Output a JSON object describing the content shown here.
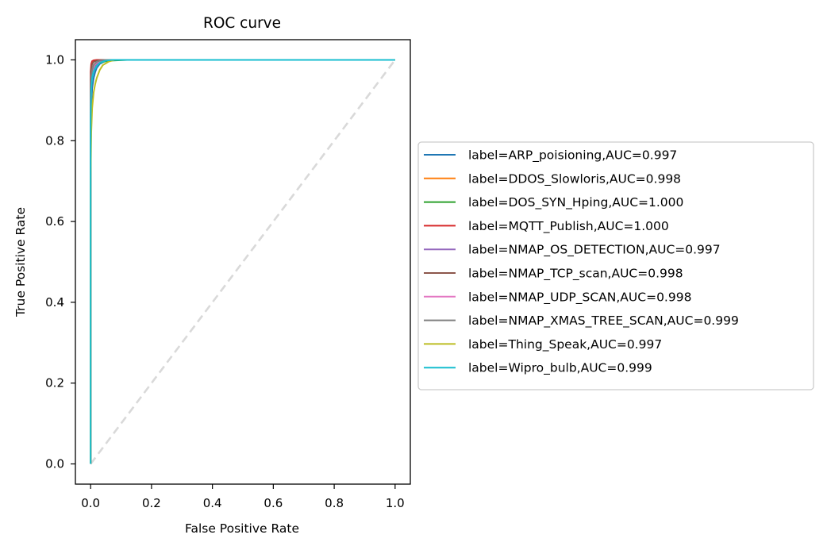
{
  "chart_data": {
    "type": "line",
    "title": "ROC curve",
    "xlabel": "False Positive Rate",
    "ylabel": "True Positive Rate",
    "xlim": [
      -0.05,
      1.05
    ],
    "ylim": [
      -0.05,
      1.05
    ],
    "xticks": [
      0.0,
      0.2,
      0.4,
      0.6,
      0.8,
      1.0
    ],
    "xtick_labels": [
      "0.0",
      "0.2",
      "0.4",
      "0.6",
      "0.8",
      "1.0"
    ],
    "yticks": [
      0.0,
      0.2,
      0.4,
      0.6,
      0.8,
      1.0
    ],
    "ytick_labels": [
      "0.0",
      "0.2",
      "0.4",
      "0.6",
      "0.8",
      "1.0"
    ],
    "grid": false,
    "legend_position": "right, outside plot area",
    "baseline": {
      "x": [
        0,
        1
      ],
      "y": [
        0,
        1
      ],
      "color": "#d9d9d9",
      "style": "dashed"
    },
    "series": [
      {
        "name": "label=ARP_poisioning,AUC=0.997",
        "color": "#1f77b4",
        "x": [
          0,
          0,
          0.002,
          0.005,
          0.01,
          0.015,
          0.02,
          0.03,
          0.045,
          0.06,
          0.08,
          1.0
        ],
        "y": [
          0,
          0.72,
          0.88,
          0.93,
          0.955,
          0.97,
          0.98,
          0.99,
          0.996,
          0.999,
          1.0,
          1.0
        ]
      },
      {
        "name": "label=DDOS_Slowloris,AUC=0.998",
        "color": "#ff7f0e",
        "x": [
          0,
          0,
          0.002,
          0.005,
          0.01,
          0.02,
          0.03,
          0.05,
          0.07,
          1.0
        ],
        "y": [
          0,
          0.8,
          0.93,
          0.96,
          0.975,
          0.988,
          0.994,
          0.998,
          1.0,
          1.0
        ]
      },
      {
        "name": "label=DOS_SYN_Hping,AUC=1.000",
        "color": "#2ca02c",
        "x": [
          0,
          0,
          0.002,
          0.005,
          0.01,
          0.02,
          0.04,
          0.06,
          0.09,
          0.12,
          1.0
        ],
        "y": [
          0,
          0.9,
          0.96,
          0.975,
          0.985,
          0.99,
          0.995,
          0.998,
          0.999,
          1.0,
          1.0
        ]
      },
      {
        "name": "label=MQTT_Publish,AUC=1.000",
        "color": "#d62728",
        "x": [
          0,
          0,
          0.002,
          0.005,
          0.01,
          0.02,
          1.0
        ],
        "y": [
          0,
          0.97,
          0.99,
          0.997,
          0.999,
          1.0,
          1.0
        ]
      },
      {
        "name": "label=NMAP_OS_DETECTION,AUC=0.997",
        "color": "#9467bd",
        "x": [
          0,
          0,
          0.002,
          0.005,
          0.01,
          0.02,
          0.03,
          0.05,
          0.07,
          1.0
        ],
        "y": [
          0,
          0.85,
          0.93,
          0.96,
          0.975,
          0.988,
          0.994,
          0.999,
          1.0,
          1.0
        ]
      },
      {
        "name": "label=NMAP_TCP_scan,AUC=0.998",
        "color": "#8c564b",
        "x": [
          0,
          0,
          0.002,
          0.005,
          0.01,
          0.02,
          0.03,
          0.04,
          1.0
        ],
        "y": [
          0,
          0.95,
          0.98,
          0.99,
          0.995,
          0.998,
          0.999,
          1.0,
          1.0
        ]
      },
      {
        "name": "label=NMAP_UDP_SCAN,AUC=0.998",
        "color": "#e377c2",
        "x": [
          0,
          0,
          0.002,
          0.005,
          0.01,
          0.02,
          0.03,
          0.05,
          1.0
        ],
        "y": [
          0,
          0.9,
          0.95,
          0.97,
          0.985,
          0.993,
          0.997,
          1.0,
          1.0
        ]
      },
      {
        "name": "label=NMAP_XMAS_TREE_SCAN,AUC=0.999",
        "color": "#7f7f7f",
        "x": [
          0,
          0,
          0.002,
          0.005,
          0.01,
          0.02,
          0.03,
          0.05,
          1.0
        ],
        "y": [
          0,
          0.92,
          0.96,
          0.975,
          0.988,
          0.995,
          0.998,
          1.0,
          1.0
        ]
      },
      {
        "name": "label=Thing_Speak,AUC=0.997",
        "color": "#bcbd22",
        "x": [
          0,
          0,
          0.002,
          0.005,
          0.01,
          0.015,
          0.02,
          0.03,
          0.04,
          0.06,
          0.08,
          1.0
        ],
        "y": [
          0,
          0.7,
          0.82,
          0.88,
          0.92,
          0.94,
          0.955,
          0.975,
          0.987,
          0.996,
          1.0,
          1.0
        ]
      },
      {
        "name": "label=Wipro_bulb,AUC=0.999",
        "color": "#17becf",
        "x": [
          0,
          0,
          0.002,
          0.005,
          0.01,
          0.02,
          0.03,
          0.05,
          0.07,
          1.0
        ],
        "y": [
          0,
          0.85,
          0.93,
          0.955,
          0.972,
          0.985,
          0.993,
          0.998,
          1.0,
          1.0
        ]
      }
    ]
  }
}
